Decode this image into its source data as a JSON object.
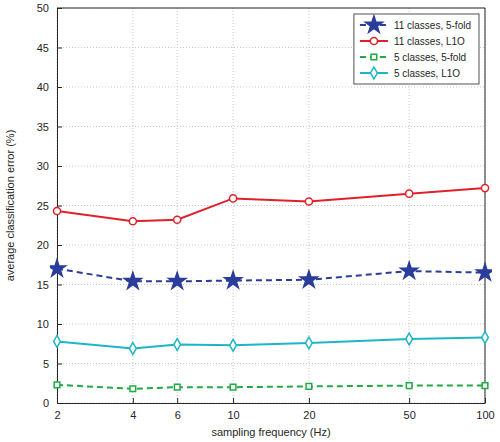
{
  "chart_data": {
    "type": "line",
    "x_label": "sampling frequency (Hz)",
    "y_label": "average classification error (%)",
    "x": [
      2,
      4,
      6,
      10,
      20,
      50,
      100
    ],
    "xlim": [
      2,
      100
    ],
    "xticks": [
      2,
      4,
      6,
      10,
      20,
      50,
      100
    ],
    "ylim": [
      0,
      50
    ],
    "yticks": [
      0,
      5,
      10,
      15,
      20,
      25,
      30,
      35,
      40,
      45,
      50
    ],
    "log": "x",
    "grid": true,
    "legend": "top-right",
    "series": [
      {
        "name": "11 classes, 5-fold",
        "color": "#2b3d9b",
        "marker": "star",
        "line_style": "dashed",
        "values": [
          17.0,
          15.4,
          15.4,
          15.5,
          15.6,
          16.7,
          16.5
        ]
      },
      {
        "name": "11 classes, L1O",
        "color": "#e0212a",
        "marker": "circle",
        "line_style": "solid",
        "values": [
          24.3,
          23.0,
          23.2,
          25.9,
          25.5,
          26.5,
          27.2
        ]
      },
      {
        "name": "5 classes, 5-fold",
        "color": "#22aa44",
        "marker": "square",
        "line_style": "dashed",
        "values": [
          2.3,
          1.8,
          2.0,
          2.0,
          2.1,
          2.2,
          2.2
        ]
      },
      {
        "name": "5 classes, L1O",
        "color": "#1fb5c8",
        "marker": "diamond",
        "line_style": "solid",
        "values": [
          7.8,
          6.9,
          7.4,
          7.3,
          7.6,
          8.1,
          8.3
        ]
      }
    ]
  }
}
